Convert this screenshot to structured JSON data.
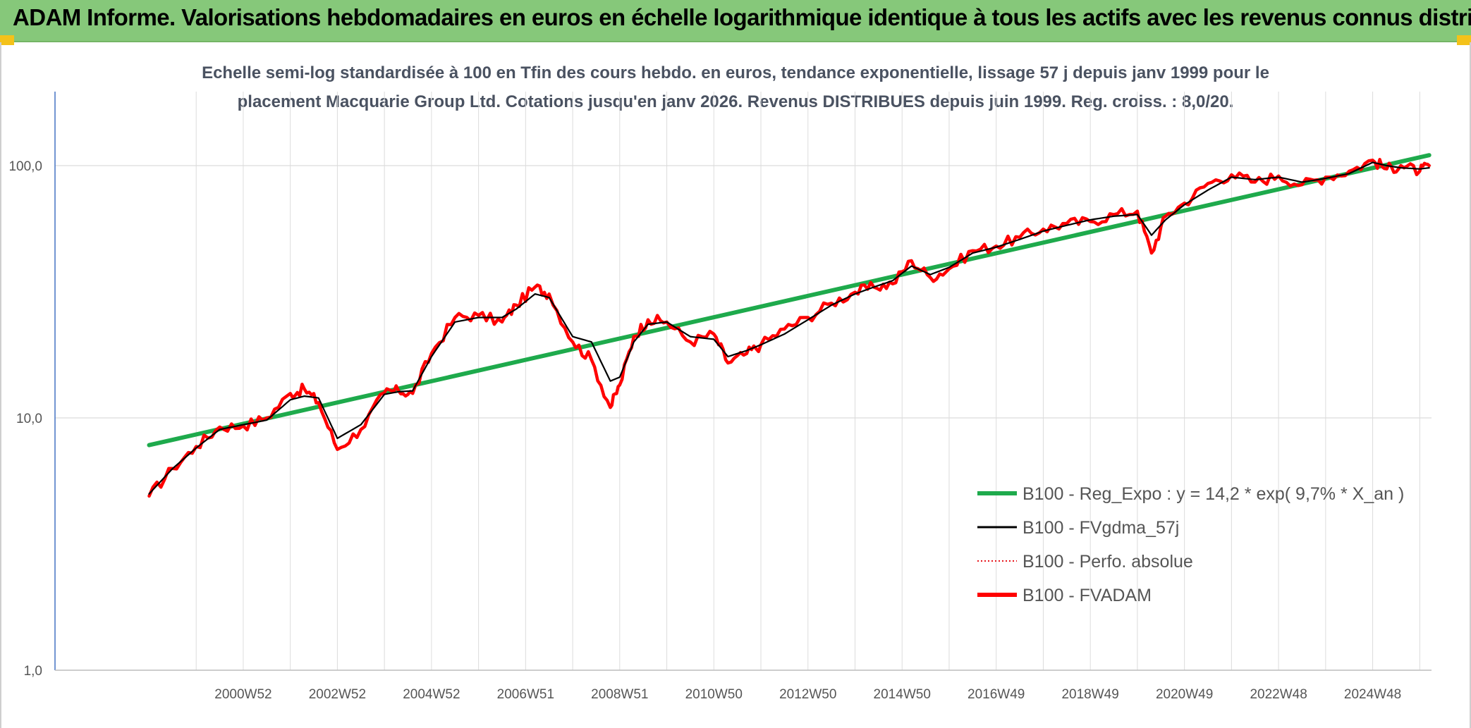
{
  "banner": {
    "title": "ADAM Informe. Valorisations hebdomadaires en euros en échelle logarithmique identique à tous les actifs avec les revenus connus distribués"
  },
  "colors": {
    "banner_bg": "#86c87a",
    "regression": "#1eaa4c",
    "fvgdma": "#000000",
    "perfo": "#e8141b",
    "fvadam": "#ff0000",
    "grid": "#dcdcdc",
    "axis": "#4472c4",
    "corner": "#f4c21a"
  },
  "chart_data": {
    "type": "line",
    "y_scale": "log",
    "title_lines": [
      "Echelle semi-log standardisée à 100 en Tfin des cours hebdo. en euros, tendance exponentielle, lissage 57 j depuis janv 1999 pour le",
      "placement Macquarie Group Ltd. Cotations jusqu'en janv 2026. Revenus DISTRIBUES depuis juin 1999. Reg. croiss. : 8,0/20."
    ],
    "y_ticks": [
      {
        "label": "100,0",
        "value": 100
      },
      {
        "label": "10,0",
        "value": 10
      },
      {
        "label": "1,0",
        "value": 1
      }
    ],
    "ylim": [
      1,
      180
    ],
    "xlim": [
      1997.0,
      2026.25
    ],
    "x_ticks": [
      {
        "label": "2000W52",
        "value": 2001.0
      },
      {
        "label": "2002W52",
        "value": 2003.0
      },
      {
        "label": "2004W52",
        "value": 2005.0
      },
      {
        "label": "2006W51",
        "value": 2007.0
      },
      {
        "label": "2008W51",
        "value": 2009.0
      },
      {
        "label": "2010W50",
        "value": 2011.0
      },
      {
        "label": "2012W50",
        "value": 2013.0
      },
      {
        "label": "2014W50",
        "value": 2015.0
      },
      {
        "label": "2016W49",
        "value": 2017.0
      },
      {
        "label": "2018W49",
        "value": 2019.0
      },
      {
        "label": "2020W49",
        "value": 2021.0
      },
      {
        "label": "2022W48",
        "value": 2023.0
      },
      {
        "label": "2024W48",
        "value": 2025.0
      }
    ],
    "grid_minor_x": [
      2000.0,
      2002.0,
      2004.0,
      2006.0,
      2008.0,
      2010.0,
      2012.0,
      2014.0,
      2016.0,
      2018.0,
      2020.0,
      2022.0,
      2024.0,
      2026.0
    ],
    "series": [
      {
        "key": "reg",
        "name": "B100 - Reg_Expo : y = 14,2 * exp( 9,7% *  X_an )",
        "style": "thick",
        "x": [
          1999.0,
          2026.2
        ],
        "y": [
          7.8,
          110
        ]
      },
      {
        "key": "fvgdma",
        "name": "B100 - FVgdma_57j",
        "style": "thin",
        "x": [
          1999.0,
          1999.5,
          2000.0,
          2000.5,
          2001.0,
          2001.5,
          2002.0,
          2002.3,
          2002.6,
          2003.0,
          2003.5,
          2004.0,
          2004.3,
          2004.6,
          2005.0,
          2005.5,
          2006.0,
          2006.5,
          2006.8,
          2007.2,
          2007.5,
          2008.0,
          2008.4,
          2008.8,
          2009.0,
          2009.3,
          2009.6,
          2010.0,
          2010.5,
          2011.0,
          2011.3,
          2011.7,
          2012.0,
          2012.5,
          2013.0,
          2013.5,
          2014.0,
          2014.4,
          2014.8,
          2015.2,
          2015.6,
          2016.0,
          2016.5,
          2017.0,
          2017.5,
          2018.0,
          2018.5,
          2019.0,
          2019.5,
          2020.0,
          2020.3,
          2020.6,
          2021.0,
          2021.5,
          2022.0,
          2022.5,
          2023.0,
          2023.5,
          2024.0,
          2024.5,
          2025.0,
          2025.3,
          2025.6,
          2026.0,
          2026.2
        ],
        "y": [
          5.0,
          6.3,
          7.6,
          9.0,
          9.4,
          9.8,
          11.8,
          12.2,
          12.0,
          8.3,
          9.4,
          12.4,
          12.7,
          12.8,
          17.5,
          24.0,
          25.0,
          25.0,
          27.0,
          31.0,
          30.0,
          21.0,
          20.0,
          14.0,
          14.5,
          20.0,
          23.5,
          24.0,
          21.0,
          20.5,
          17.5,
          18.5,
          19.5,
          21.5,
          24.5,
          28.0,
          31.0,
          33.0,
          35.0,
          40.0,
          37.0,
          39.5,
          45.0,
          47.5,
          51.0,
          55.0,
          58.0,
          61.0,
          63.0,
          64.0,
          53.0,
          61.0,
          70.0,
          80.0,
          90.0,
          88.0,
          90.0,
          86.0,
          89.0,
          93.0,
          103.0,
          100.0,
          98.0,
          97.0,
          98.0
        ]
      },
      {
        "key": "perfo",
        "name": "B100 - Perfo. absolue",
        "style": "dotted",
        "x": [],
        "y": []
      },
      {
        "key": "fvadam",
        "name": "B100 - FVADAM",
        "style": "thick-noisy",
        "x": [
          1999.0,
          1999.5,
          2000.0,
          2000.5,
          2001.0,
          2001.5,
          2002.0,
          2002.3,
          2002.6,
          2003.0,
          2003.5,
          2004.0,
          2004.3,
          2004.6,
          2005.0,
          2005.5,
          2006.0,
          2006.5,
          2006.8,
          2007.2,
          2007.5,
          2008.0,
          2008.4,
          2008.8,
          2009.0,
          2009.3,
          2009.6,
          2010.0,
          2010.5,
          2011.0,
          2011.3,
          2011.7,
          2012.0,
          2012.5,
          2013.0,
          2013.5,
          2014.0,
          2014.4,
          2014.8,
          2015.2,
          2015.6,
          2016.0,
          2016.5,
          2017.0,
          2017.5,
          2018.0,
          2018.5,
          2019.0,
          2019.5,
          2020.0,
          2020.3,
          2020.6,
          2021.0,
          2021.5,
          2022.0,
          2022.5,
          2023.0,
          2023.5,
          2024.0,
          2024.5,
          2025.0,
          2025.3,
          2025.6,
          2026.0,
          2026.2
        ],
        "y": [
          4.9,
          6.3,
          7.7,
          9.2,
          9.3,
          10.0,
          12.5,
          13.0,
          11.5,
          7.5,
          9.0,
          12.6,
          12.8,
          12.5,
          18.0,
          25.0,
          25.5,
          24.0,
          28.0,
          33.0,
          31.0,
          20.0,
          17.0,
          11.0,
          13.5,
          21.0,
          24.5,
          24.0,
          20.0,
          21.5,
          16.5,
          18.0,
          19.5,
          22.5,
          25.0,
          28.5,
          31.5,
          33.0,
          34.0,
          42.0,
          36.0,
          39.0,
          46.0,
          48.0,
          52.0,
          56.0,
          59.0,
          60.0,
          64.0,
          66.0,
          45.0,
          63.0,
          71.0,
          85.0,
          92.0,
          86.0,
          91.0,
          84.0,
          90.0,
          95.0,
          105.0,
          97.0,
          100.0,
          95.0,
          100.0
        ]
      }
    ]
  }
}
